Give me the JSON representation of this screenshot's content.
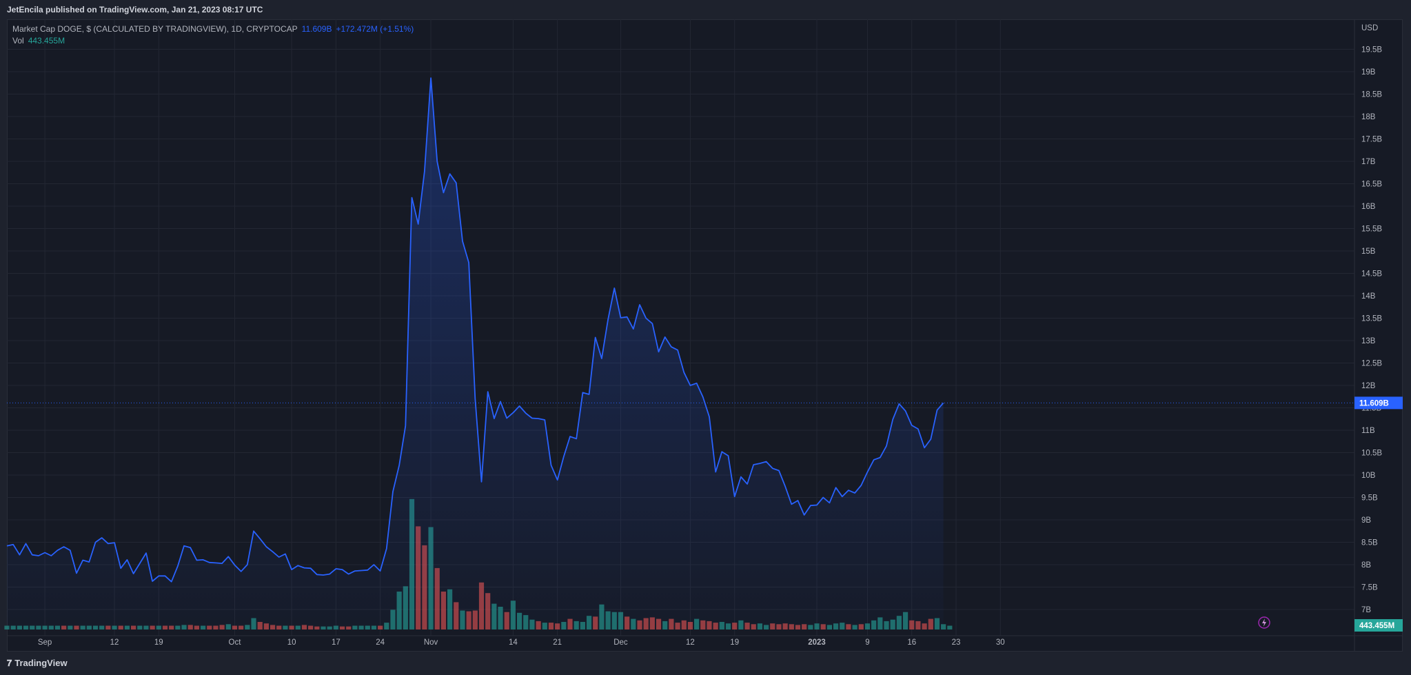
{
  "header": {
    "publisher": "JetEncila published on TradingView.com, Jan 21, 2023 08:17 UTC"
  },
  "legend": {
    "symbol": "Market Cap DOGE, $ (CALCULATED BY TRADINGVIEW), 1D, CRYPTOCAP",
    "last_value": "11.609B",
    "change": "+172.472M (+1.51%)",
    "volume_label": "Vol",
    "volume_value": "443.455M"
  },
  "footer": {
    "brand": "TradingView"
  },
  "colors": {
    "line": "#2962ff",
    "up": "#26a69a",
    "down": "#ef5350",
    "background": "#161a25",
    "grid": "#232733"
  },
  "chart_data": {
    "type": "area",
    "y_unit": "USD",
    "last_price_label": "11.609B",
    "last_volume_label": "443.455M",
    "ylim": [
      6.5,
      20
    ],
    "y_ticks": [
      "7B",
      "7.5B",
      "8B",
      "8.5B",
      "9B",
      "9.5B",
      "10B",
      "10.5B",
      "11B",
      "11.5B",
      "12B",
      "12.5B",
      "13B",
      "13.5B",
      "14B",
      "14.5B",
      "15B",
      "15.5B",
      "16B",
      "16.5B",
      "17B",
      "17.5B",
      "18B",
      "18.5B",
      "19B",
      "19.5B"
    ],
    "x_ticks": [
      {
        "label": "Sep",
        "index": 6
      },
      {
        "label": "12",
        "index": 17
      },
      {
        "label": "19",
        "index": 24
      },
      {
        "label": "Oct",
        "index": 36
      },
      {
        "label": "10",
        "index": 45
      },
      {
        "label": "17",
        "index": 52
      },
      {
        "label": "24",
        "index": 59
      },
      {
        "label": "Nov",
        "index": 67
      },
      {
        "label": "14",
        "index": 80
      },
      {
        "label": "21",
        "index": 87
      },
      {
        "label": "Dec",
        "index": 97
      },
      {
        "label": "12",
        "index": 108
      },
      {
        "label": "19",
        "index": 115
      },
      {
        "label": "2023",
        "index": 128
      },
      {
        "label": "9",
        "index": 136
      },
      {
        "label": "16",
        "index": 143
      },
      {
        "label": "23",
        "index": 150
      },
      {
        "label": "30",
        "index": 157
      }
    ],
    "series": [
      {
        "values": [
          8.42,
          8.45,
          8.22,
          8.47,
          8.22,
          8.2,
          8.27,
          8.2,
          8.32,
          8.4,
          8.32,
          7.81,
          8.1,
          8.06,
          8.5,
          8.6,
          8.47,
          8.49,
          7.92,
          8.11,
          7.8,
          8.03,
          8.26,
          7.63,
          7.75,
          7.75,
          7.62,
          7.97,
          8.42,
          8.38,
          8.1,
          8.11,
          8.05,
          8.04,
          8.03,
          8.18,
          7.99,
          7.85,
          8.0,
          8.75,
          8.58,
          8.4,
          8.29,
          8.17,
          8.24,
          7.89,
          7.98,
          7.93,
          7.92,
          7.78,
          7.77,
          7.79,
          7.91,
          7.89,
          7.79,
          7.86,
          7.87,
          7.88,
          8.0,
          7.86,
          8.36,
          9.63,
          10.22,
          11.1,
          16.19,
          15.6,
          16.78,
          18.86,
          17.0,
          16.3,
          16.72,
          16.52,
          15.22,
          14.74,
          11.71,
          9.85,
          11.86,
          11.26,
          11.64,
          11.27,
          11.39,
          11.54,
          11.38,
          11.27,
          11.26,
          11.23,
          10.22,
          9.89,
          10.41,
          10.86,
          10.81,
          11.84,
          11.8,
          13.07,
          12.6,
          13.47,
          14.17,
          13.51,
          13.53,
          13.26,
          13.8,
          13.5,
          13.38,
          12.75,
          13.08,
          12.86,
          12.79,
          12.29,
          12.0,
          12.05,
          11.74,
          11.3,
          10.07,
          10.52,
          10.43,
          9.52,
          9.96,
          9.8,
          10.23,
          10.26,
          10.3,
          10.15,
          10.1,
          9.75,
          9.35,
          9.43,
          9.11,
          9.32,
          9.33,
          9.5,
          9.38,
          9.72,
          9.52,
          9.66,
          9.6,
          9.77,
          10.07,
          10.34,
          10.39,
          10.65,
          11.24,
          11.59,
          11.43,
          11.11,
          11.03,
          10.61,
          10.8,
          11.45,
          11.61
        ]
      }
    ],
    "volume": [
      [
        0.5,
        1
      ],
      [
        0.5,
        1
      ],
      [
        0.5,
        1
      ],
      [
        0.5,
        1
      ],
      [
        0.5,
        1
      ],
      [
        0.5,
        1
      ],
      [
        0.5,
        1
      ],
      [
        0.5,
        1
      ],
      [
        0.5,
        1
      ],
      [
        0.5,
        0
      ],
      [
        0.5,
        1
      ],
      [
        0.5,
        0
      ],
      [
        0.5,
        1
      ],
      [
        0.5,
        1
      ],
      [
        0.5,
        1
      ],
      [
        0.5,
        1
      ],
      [
        0.5,
        0
      ],
      [
        0.5,
        1
      ],
      [
        0.5,
        0
      ],
      [
        0.5,
        1
      ],
      [
        0.5,
        0
      ],
      [
        0.5,
        1
      ],
      [
        0.5,
        1
      ],
      [
        0.5,
        0
      ],
      [
        0.5,
        1
      ],
      [
        0.5,
        0
      ],
      [
        0.5,
        0
      ],
      [
        0.5,
        1
      ],
      [
        0.6,
        1
      ],
      [
        0.6,
        0
      ],
      [
        0.5,
        0
      ],
      [
        0.5,
        1
      ],
      [
        0.5,
        0
      ],
      [
        0.5,
        0
      ],
      [
        0.6,
        0
      ],
      [
        0.7,
        1
      ],
      [
        0.5,
        0
      ],
      [
        0.5,
        0
      ],
      [
        0.6,
        1
      ],
      [
        1.5,
        1
      ],
      [
        1.0,
        0
      ],
      [
        0.8,
        0
      ],
      [
        0.6,
        0
      ],
      [
        0.5,
        0
      ],
      [
        0.5,
        1
      ],
      [
        0.5,
        0
      ],
      [
        0.5,
        1
      ],
      [
        0.6,
        0
      ],
      [
        0.5,
        0
      ],
      [
        0.4,
        0
      ],
      [
        0.4,
        1
      ],
      [
        0.4,
        1
      ],
      [
        0.5,
        1
      ],
      [
        0.4,
        0
      ],
      [
        0.4,
        0
      ],
      [
        0.5,
        1
      ],
      [
        0.5,
        1
      ],
      [
        0.5,
        1
      ],
      [
        0.5,
        1
      ],
      [
        0.5,
        0
      ],
      [
        0.9,
        1
      ],
      [
        2.6,
        1
      ],
      [
        5.0,
        1
      ],
      [
        5.7,
        1
      ],
      [
        17.2,
        1
      ],
      [
        13.6,
        0
      ],
      [
        11.1,
        0
      ],
      [
        13.5,
        1
      ],
      [
        8.1,
        0
      ],
      [
        5.0,
        0
      ],
      [
        5.3,
        1
      ],
      [
        3.6,
        0
      ],
      [
        2.5,
        1
      ],
      [
        2.4,
        0
      ],
      [
        2.5,
        0
      ],
      [
        6.2,
        0
      ],
      [
        4.8,
        0
      ],
      [
        3.4,
        1
      ],
      [
        3.0,
        1
      ],
      [
        2.3,
        0
      ],
      [
        3.8,
        1
      ],
      [
        2.2,
        1
      ],
      [
        1.9,
        1
      ],
      [
        1.3,
        1
      ],
      [
        1.1,
        0
      ],
      [
        0.9,
        1
      ],
      [
        0.9,
        0
      ],
      [
        0.8,
        0
      ],
      [
        1.0,
        1
      ],
      [
        1.4,
        0
      ],
      [
        1.1,
        1
      ],
      [
        1.0,
        1
      ],
      [
        1.8,
        1
      ],
      [
        1.7,
        0
      ],
      [
        3.3,
        1
      ],
      [
        2.4,
        1
      ],
      [
        2.3,
        1
      ],
      [
        2.3,
        1
      ],
      [
        1.7,
        0
      ],
      [
        1.4,
        1
      ],
      [
        1.2,
        0
      ],
      [
        1.5,
        0
      ],
      [
        1.6,
        0
      ],
      [
        1.4,
        0
      ],
      [
        1.1,
        1
      ],
      [
        1.4,
        0
      ],
      [
        0.9,
        0
      ],
      [
        1.2,
        0
      ],
      [
        1.0,
        0
      ],
      [
        1.4,
        1
      ],
      [
        1.2,
        0
      ],
      [
        1.1,
        0
      ],
      [
        0.9,
        0
      ],
      [
        1.0,
        1
      ],
      [
        0.8,
        1
      ],
      [
        0.9,
        0
      ],
      [
        1.2,
        1
      ],
      [
        0.9,
        0
      ],
      [
        0.7,
        0
      ],
      [
        0.8,
        1
      ],
      [
        0.6,
        1
      ],
      [
        0.8,
        0
      ],
      [
        0.7,
        0
      ],
      [
        0.8,
        0
      ],
      [
        0.7,
        0
      ],
      [
        0.6,
        0
      ],
      [
        0.7,
        0
      ],
      [
        0.6,
        1
      ],
      [
        0.8,
        1
      ],
      [
        0.7,
        0
      ],
      [
        0.6,
        1
      ],
      [
        0.8,
        1
      ],
      [
        0.9,
        1
      ],
      [
        0.7,
        0
      ],
      [
        0.6,
        1
      ],
      [
        0.7,
        0
      ],
      [
        0.8,
        1
      ],
      [
        1.2,
        1
      ],
      [
        1.6,
        1
      ],
      [
        1.1,
        1
      ],
      [
        1.3,
        1
      ],
      [
        1.8,
        1
      ],
      [
        2.3,
        1
      ],
      [
        1.2,
        0
      ],
      [
        1.1,
        0
      ],
      [
        0.8,
        0
      ],
      [
        1.4,
        0
      ],
      [
        1.5,
        1
      ],
      [
        0.7,
        1
      ],
      [
        0.5,
        1
      ]
    ]
  }
}
